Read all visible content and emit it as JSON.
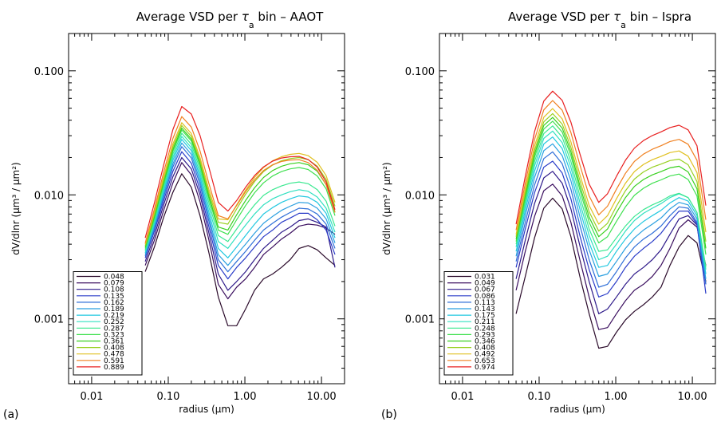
{
  "chart_data": [
    {
      "type": "line",
      "panel_label": "(a)",
      "title_parts": [
        "Average VSD per ",
        "τ",
        "a",
        " bin – AAOT"
      ],
      "xlabel": "radius (μm)",
      "ylabel": "dV/dlnr (μm³ / μm²)",
      "xscale": "log",
      "yscale": "log",
      "xlim": [
        0.005,
        20
      ],
      "ylim": [
        0.0003,
        0.2
      ],
      "xticks": [
        {
          "v": 0.01,
          "label": "0.01"
        },
        {
          "v": 0.1,
          "label": "0.10"
        },
        {
          "v": 1,
          "label": "1.00"
        },
        {
          "v": 10,
          "label": "10.00"
        }
      ],
      "yticks": [
        {
          "v": 0.001,
          "label": "0.001"
        },
        {
          "v": 0.01,
          "label": "0.010"
        },
        {
          "v": 0.1,
          "label": "0.100"
        }
      ],
      "legend_position": "bottom-left",
      "x": [
        0.05,
        0.066,
        0.087,
        0.115,
        0.15,
        0.2,
        0.26,
        0.34,
        0.45,
        0.6,
        0.78,
        1.02,
        1.34,
        1.75,
        2.3,
        3.0,
        3.9,
        5.1,
        6.7,
        8.8,
        11.5,
        15.0
      ],
      "series": [
        {
          "name": "0.048",
          "color": "#2a0a2a",
          "values": [
            0.0024,
            0.0038,
            0.0066,
            0.0105,
            0.0148,
            0.0115,
            0.0068,
            0.0034,
            0.0015,
            0.00088,
            0.00088,
            0.0012,
            0.0017,
            0.0021,
            0.0023,
            0.0026,
            0.003,
            0.0037,
            0.0039,
            0.0036,
            0.0031,
            0.0027
          ]
        },
        {
          "name": "0.079",
          "color": "#3a0e5e",
          "values": [
            0.0027,
            0.0043,
            0.0075,
            0.0125,
            0.0182,
            0.0145,
            0.0088,
            0.0043,
            0.0019,
            0.00145,
            0.0018,
            0.0021,
            0.0026,
            0.0033,
            0.0038,
            0.0044,
            0.0049,
            0.0056,
            0.0058,
            0.0057,
            0.0054,
            0.0048
          ]
        },
        {
          "name": "0.108",
          "color": "#2e1a8a",
          "values": [
            0.0029,
            0.0047,
            0.0083,
            0.014,
            0.02,
            0.0162,
            0.01,
            0.0049,
            0.0023,
            0.0017,
            0.002,
            0.0024,
            0.003,
            0.0037,
            0.0043,
            0.005,
            0.0055,
            0.0062,
            0.0064,
            0.006,
            0.0055,
            0.0026
          ]
        },
        {
          "name": "0.135",
          "color": "#2a3cc8",
          "values": [
            0.0031,
            0.0051,
            0.009,
            0.0155,
            0.0223,
            0.018,
            0.011,
            0.0055,
            0.0027,
            0.0021,
            0.0026,
            0.0031,
            0.0038,
            0.0046,
            0.0052,
            0.006,
            0.0065,
            0.0071,
            0.0071,
            0.0063,
            0.0052,
            0.0033
          ]
        },
        {
          "name": "0.162",
          "color": "#2f6fd8",
          "values": [
            0.0032,
            0.0053,
            0.0096,
            0.0168,
            0.0245,
            0.0198,
            0.0121,
            0.0061,
            0.003,
            0.0024,
            0.0029,
            0.0035,
            0.0043,
            0.0052,
            0.0059,
            0.0066,
            0.0072,
            0.0078,
            0.0077,
            0.007,
            0.0058,
            0.0037
          ]
        },
        {
          "name": "0.189",
          "color": "#2a9fe0",
          "values": [
            0.0033,
            0.0056,
            0.0101,
            0.0178,
            0.0262,
            0.0212,
            0.013,
            0.0066,
            0.0033,
            0.0027,
            0.0033,
            0.004,
            0.0049,
            0.0059,
            0.0067,
            0.0075,
            0.0081,
            0.0087,
            0.0086,
            0.0078,
            0.0064,
            0.0041
          ]
        },
        {
          "name": "0.219",
          "color": "#22c8e0",
          "values": [
            0.0034,
            0.0058,
            0.0107,
            0.019,
            0.028,
            0.0227,
            0.014,
            0.0072,
            0.0037,
            0.0031,
            0.0038,
            0.0047,
            0.0058,
            0.007,
            0.0079,
            0.0087,
            0.0093,
            0.0098,
            0.0096,
            0.0087,
            0.0071,
            0.0045
          ]
        },
        {
          "name": "0.252",
          "color": "#30e0c0",
          "values": [
            0.0035,
            0.006,
            0.0112,
            0.0201,
            0.0296,
            0.024,
            0.015,
            0.0079,
            0.0042,
            0.0037,
            0.0046,
            0.0057,
            0.007,
            0.0083,
            0.0093,
            0.01,
            0.0106,
            0.011,
            0.0107,
            0.0096,
            0.0078,
            0.005
          ]
        },
        {
          "name": "0.287",
          "color": "#3ae890",
          "values": [
            0.0036,
            0.0063,
            0.0118,
            0.0213,
            0.0314,
            0.0256,
            0.0161,
            0.0086,
            0.0047,
            0.0042,
            0.0053,
            0.0067,
            0.0083,
            0.0099,
            0.011,
            0.0118,
            0.0124,
            0.0127,
            0.0123,
            0.011,
            0.0089,
            0.0056
          ]
        },
        {
          "name": "0.323",
          "color": "#40e050",
          "values": [
            0.0037,
            0.0065,
            0.0123,
            0.0225,
            0.0333,
            0.0272,
            0.0172,
            0.0093,
            0.0052,
            0.0048,
            0.0063,
            0.0082,
            0.0104,
            0.0125,
            0.0142,
            0.0154,
            0.0162,
            0.0166,
            0.016,
            0.0142,
            0.0112,
            0.0068
          ]
        },
        {
          "name": "0.361",
          "color": "#3ad020",
          "values": [
            0.0038,
            0.0067,
            0.0127,
            0.0233,
            0.0345,
            0.0282,
            0.0179,
            0.0097,
            0.0055,
            0.0052,
            0.0069,
            0.009,
            0.0114,
            0.0138,
            0.0157,
            0.017,
            0.0178,
            0.0182,
            0.0175,
            0.0155,
            0.0121,
            0.0073
          ]
        },
        {
          "name": "0.408",
          "color": "#98d020",
          "values": [
            0.0039,
            0.007,
            0.0133,
            0.0245,
            0.0362,
            0.0296,
            0.0189,
            0.0103,
            0.006,
            0.0058,
            0.0077,
            0.0101,
            0.0128,
            0.0154,
            0.0174,
            0.0188,
            0.0196,
            0.02,
            0.0192,
            0.017,
            0.0133,
            0.0081
          ]
        },
        {
          "name": "0.478",
          "color": "#e0c020",
          "values": [
            0.004,
            0.0073,
            0.014,
            0.0258,
            0.0382,
            0.0312,
            0.02,
            0.011,
            0.0064,
            0.0063,
            0.0083,
            0.0109,
            0.0138,
            0.0166,
            0.0188,
            0.0203,
            0.0212,
            0.0216,
            0.0207,
            0.0183,
            0.0143,
            0.0087
          ]
        },
        {
          "name": "0.591",
          "color": "#f08020",
          "values": [
            0.0041,
            0.0077,
            0.0152,
            0.0285,
            0.0428,
            0.0352,
            0.0226,
            0.0123,
            0.0068,
            0.0064,
            0.0082,
            0.0106,
            0.0132,
            0.0157,
            0.0175,
            0.0186,
            0.0191,
            0.0192,
            0.0182,
            0.0158,
            0.0121,
            0.0072
          ]
        },
        {
          "name": "0.889",
          "color": "#e82020",
          "values": [
            0.0045,
            0.0086,
            0.0174,
            0.0336,
            0.0516,
            0.0448,
            0.0301,
            0.0166,
            0.0087,
            0.0074,
            0.009,
            0.0115,
            0.0143,
            0.0168,
            0.0187,
            0.0198,
            0.0203,
            0.0204,
            0.0193,
            0.0167,
            0.0127,
            0.0076
          ]
        }
      ]
    },
    {
      "type": "line",
      "panel_label": "(b)",
      "title_parts": [
        "Average VSD per ",
        "τ",
        "a",
        " bin – Ispra"
      ],
      "xlabel": "radius (μm)",
      "ylabel": "dV/dlnr (μm³ / μm²)",
      "xscale": "log",
      "yscale": "log",
      "xlim": [
        0.005,
        20
      ],
      "ylim": [
        0.0003,
        0.2
      ],
      "xticks": [
        {
          "v": 0.01,
          "label": "0.01"
        },
        {
          "v": 0.1,
          "label": "0.10"
        },
        {
          "v": 1,
          "label": "1.00"
        },
        {
          "v": 10,
          "label": "10.00"
        }
      ],
      "yticks": [
        {
          "v": 0.001,
          "label": "0.001"
        },
        {
          "v": 0.01,
          "label": "0.010"
        },
        {
          "v": 0.1,
          "label": "0.100"
        }
      ],
      "legend_position": "bottom-left",
      "x": [
        0.05,
        0.066,
        0.087,
        0.115,
        0.15,
        0.2,
        0.26,
        0.34,
        0.45,
        0.6,
        0.78,
        1.02,
        1.34,
        1.75,
        2.3,
        3.0,
        3.9,
        5.1,
        6.7,
        8.8,
        11.5,
        15.0
      ],
      "series": [
        {
          "name": "0.031",
          "color": "#2a0a2a",
          "values": [
            0.0011,
            0.0022,
            0.0045,
            0.0078,
            0.0094,
            0.0077,
            0.0046,
            0.0022,
            0.0011,
            0.00058,
            0.0006,
            0.00078,
            0.00098,
            0.00115,
            0.0013,
            0.0015,
            0.0018,
            0.0027,
            0.0038,
            0.0047,
            0.0041,
            0.002
          ]
        },
        {
          "name": "0.049",
          "color": "#3a0e5e",
          "values": [
            0.0017,
            0.0035,
            0.0067,
            0.0108,
            0.0122,
            0.0098,
            0.006,
            0.003,
            0.0015,
            0.00082,
            0.00085,
            0.0011,
            0.0014,
            0.0017,
            0.0019,
            0.0022,
            0.0027,
            0.0037,
            0.0054,
            0.0063,
            0.0055,
            0.0027
          ]
        },
        {
          "name": "0.067",
          "color": "#2e1a8a",
          "values": [
            0.0021,
            0.0043,
            0.0085,
            0.0137,
            0.0155,
            0.0124,
            0.0077,
            0.0039,
            0.002,
            0.0011,
            0.0012,
            0.0015,
            0.0019,
            0.0023,
            0.0026,
            0.003,
            0.0036,
            0.0048,
            0.0064,
            0.0068,
            0.0057,
            0.0019
          ]
        },
        {
          "name": "0.086",
          "color": "#2a3cc8",
          "values": [
            0.0026,
            0.0053,
            0.0104,
            0.0167,
            0.0187,
            0.015,
            0.0093,
            0.0047,
            0.0025,
            0.0015,
            0.0016,
            0.002,
            0.0026,
            0.0032,
            0.0037,
            0.0042,
            0.0049,
            0.0061,
            0.0074,
            0.0074,
            0.0058,
            0.0016
          ]
        },
        {
          "name": "0.113",
          "color": "#2f6fd8",
          "values": [
            0.0029,
            0.006,
            0.012,
            0.0196,
            0.0222,
            0.0178,
            0.0111,
            0.0057,
            0.003,
            0.0018,
            0.0019,
            0.0024,
            0.0031,
            0.0038,
            0.0044,
            0.0049,
            0.0056,
            0.0068,
            0.008,
            0.0078,
            0.006,
            0.0019
          ]
        },
        {
          "name": "0.143",
          "color": "#2a9fe0",
          "values": [
            0.0032,
            0.0068,
            0.0138,
            0.0227,
            0.0258,
            0.0207,
            0.013,
            0.0067,
            0.0036,
            0.0022,
            0.0023,
            0.0029,
            0.0037,
            0.0045,
            0.0052,
            0.0058,
            0.0065,
            0.0077,
            0.0087,
            0.0083,
            0.0064,
            0.0021
          ]
        },
        {
          "name": "0.175",
          "color": "#22c8e0",
          "values": [
            0.0035,
            0.0075,
            0.0155,
            0.0257,
            0.0293,
            0.0236,
            0.0149,
            0.0077,
            0.0041,
            0.0026,
            0.0027,
            0.0035,
            0.0044,
            0.0053,
            0.0061,
            0.0068,
            0.0075,
            0.0086,
            0.0095,
            0.0089,
            0.0068,
            0.0023
          ]
        },
        {
          "name": "0.211",
          "color": "#30e0c0",
          "values": [
            0.0038,
            0.0082,
            0.0171,
            0.0285,
            0.0327,
            0.0264,
            0.0167,
            0.0087,
            0.0047,
            0.003,
            0.0032,
            0.004,
            0.0051,
            0.0062,
            0.0071,
            0.0078,
            0.0085,
            0.0095,
            0.0102,
            0.0095,
            0.0072,
            0.0025
          ]
        },
        {
          "name": "0.248",
          "color": "#3ae890",
          "values": [
            0.004,
            0.0088,
            0.0186,
            0.0312,
            0.036,
            0.0292,
            0.0186,
            0.0098,
            0.0053,
            0.0035,
            0.0036,
            0.0045,
            0.0056,
            0.0067,
            0.0076,
            0.0083,
            0.0089,
            0.0098,
            0.0103,
            0.0095,
            0.0072,
            0.0026
          ]
        },
        {
          "name": "0.293",
          "color": "#40e050",
          "values": [
            0.0042,
            0.0094,
            0.0201,
            0.0339,
            0.0393,
            0.0321,
            0.0207,
            0.011,
            0.006,
            0.0041,
            0.0046,
            0.0061,
            0.008,
            0.0099,
            0.0113,
            0.0124,
            0.0132,
            0.0142,
            0.0147,
            0.0133,
            0.0098,
            0.0033
          ]
        },
        {
          "name": "0.346",
          "color": "#3ad020",
          "values": [
            0.0044,
            0.0099,
            0.0214,
            0.0363,
            0.0421,
            0.0345,
            0.0223,
            0.0119,
            0.0066,
            0.0046,
            0.0053,
            0.0072,
            0.0095,
            0.0117,
            0.0133,
            0.0145,
            0.0154,
            0.0165,
            0.017,
            0.0153,
            0.0112,
            0.0037
          ]
        },
        {
          "name": "0.408",
          "color": "#98d020",
          "values": [
            0.0046,
            0.0105,
            0.0228,
            0.0388,
            0.0452,
            0.0372,
            0.0242,
            0.0131,
            0.0073,
            0.0051,
            0.0059,
            0.0081,
            0.0108,
            0.0134,
            0.0153,
            0.0167,
            0.0177,
            0.0189,
            0.0194,
            0.0175,
            0.0128,
            0.0042
          ]
        },
        {
          "name": "0.492",
          "color": "#e0c020",
          "values": [
            0.0048,
            0.0112,
            0.0247,
            0.0423,
            0.0496,
            0.041,
            0.0268,
            0.0146,
            0.0082,
            0.0058,
            0.0068,
            0.0093,
            0.0124,
            0.0154,
            0.0176,
            0.0192,
            0.0204,
            0.0219,
            0.0226,
            0.0205,
            0.0151,
            0.005
          ]
        },
        {
          "name": "0.653",
          "color": "#f08020",
          "values": [
            0.0052,
            0.0124,
            0.0279,
            0.0485,
            0.0576,
            0.0481,
            0.0318,
            0.0175,
            0.0098,
            0.0069,
            0.0081,
            0.0111,
            0.0149,
            0.0186,
            0.0213,
            0.0233,
            0.0249,
            0.0269,
            0.028,
            0.0256,
            0.019,
            0.0063
          ]
        },
        {
          "name": "0.974",
          "color": "#e82020",
          "values": [
            0.0058,
            0.0141,
            0.0323,
            0.057,
            0.0686,
            0.0578,
            0.0386,
            0.0215,
            0.0122,
            0.0087,
            0.0102,
            0.0141,
            0.019,
            0.0238,
            0.0274,
            0.0301,
            0.0322,
            0.0349,
            0.0364,
            0.0334,
            0.0249,
            0.0082
          ]
        }
      ]
    }
  ]
}
